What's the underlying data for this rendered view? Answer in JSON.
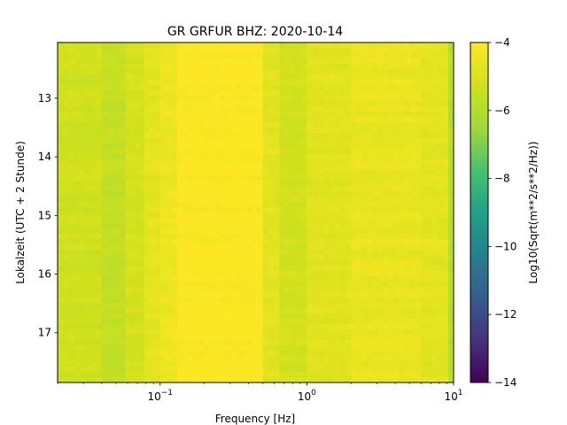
{
  "chart_data": {
    "type": "heatmap",
    "title": "GR GRFUR  BHZ: 2020-10-14",
    "xlabel": "Frequency [Hz]",
    "ylabel": "Lokalzeit (UTC + 2 Stunde)",
    "x_scale": "log",
    "xlim": [
      0.02,
      10
    ],
    "x_ticks": [
      {
        "value": 0.1,
        "base": "10",
        "exp": "−1"
      },
      {
        "value": 1,
        "base": "10",
        "exp": "0"
      },
      {
        "value": 10,
        "base": "10",
        "exp": "1"
      }
    ],
    "ylim": [
      12.05,
      17.85
    ],
    "y_inverted": true,
    "y_ticks": [
      {
        "value": 13,
        "label": "13"
      },
      {
        "value": 14,
        "label": "14"
      },
      {
        "value": 15,
        "label": "15"
      },
      {
        "value": 16,
        "label": "16"
      },
      {
        "value": 17,
        "label": "17"
      }
    ],
    "colormap": "viridis",
    "colorbar": {
      "label": "Log10(Sqrt(m**2/s**2/Hz))",
      "range": [
        -14,
        -4
      ],
      "ticks": [
        {
          "value": -4,
          "label": "−4"
        },
        {
          "value": -6,
          "label": "−6"
        },
        {
          "value": -8,
          "label": "−8"
        },
        {
          "value": -10,
          "label": "−10"
        },
        {
          "value": -12,
          "label": "−12"
        },
        {
          "value": -14,
          "label": "−14"
        }
      ]
    },
    "frequency_bands": [
      {
        "f_min": 0.02,
        "f_max": 0.04,
        "level": -5.3
      },
      {
        "f_min": 0.04,
        "f_max": 0.058,
        "level": -5.6
      },
      {
        "f_min": 0.058,
        "f_max": 0.078,
        "level": -5.15
      },
      {
        "f_min": 0.078,
        "f_max": 0.1,
        "level": -4.7
      },
      {
        "f_min": 0.1,
        "f_max": 0.13,
        "level": -4.45
      },
      {
        "f_min": 0.13,
        "f_max": 0.5,
        "level": -4.05
      },
      {
        "f_min": 0.5,
        "f_max": 0.65,
        "level": -4.75
      },
      {
        "f_min": 0.65,
        "f_max": 1.0,
        "level": -5.2
      },
      {
        "f_min": 1.0,
        "f_max": 2.0,
        "level": -4.8
      },
      {
        "f_min": 2.0,
        "f_max": 6.0,
        "level": -4.55
      },
      {
        "f_min": 6.0,
        "f_max": 9.2,
        "level": -4.7
      },
      {
        "f_min": 9.2,
        "f_max": 10.0,
        "level": -5.9
      }
    ]
  }
}
